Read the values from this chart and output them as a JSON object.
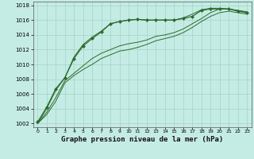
{
  "background_color": "#c5ece4",
  "grid_color": "#a0d4c8",
  "line_color": "#2d6a2d",
  "marker_color": "#2d6a2d",
  "xlabel": "Graphe pression niveau de la mer (hPa)",
  "xlabel_fontsize": 6.5,
  "ylim": [
    1001.5,
    1018.5
  ],
  "xlim": [
    -0.5,
    23.5
  ],
  "yticks": [
    1002,
    1004,
    1006,
    1008,
    1010,
    1012,
    1014,
    1016,
    1018
  ],
  "xticks": [
    0,
    1,
    2,
    3,
    4,
    5,
    6,
    7,
    8,
    9,
    10,
    11,
    12,
    13,
    14,
    15,
    16,
    17,
    18,
    19,
    20,
    21,
    22,
    23
  ],
  "line_spike": [
    1002.2,
    1004.2,
    1006.7,
    1008.2,
    1010.8,
    1012.5,
    1013.5,
    1014.4,
    1015.5,
    1015.8,
    1016.0,
    1016.1,
    1016.0,
    1016.0,
    1016.0,
    1016.0,
    1016.2,
    1016.5,
    1017.3,
    1017.5,
    1017.5,
    1017.5,
    1017.2,
    1017.0
  ],
  "line_high": [
    1002.0,
    1004.0,
    1006.5,
    1008.2,
    1011.0,
    1012.7,
    1013.7,
    1014.5,
    1015.5,
    1015.8,
    1016.0,
    1016.1,
    1016.0,
    1016.0,
    1016.0,
    1016.0,
    1016.3,
    1016.8,
    1017.4,
    1017.6,
    1017.6,
    1017.5,
    1017.3,
    1017.1
  ],
  "line_mid": [
    1002.0,
    1003.5,
    1005.5,
    1007.8,
    1008.8,
    1009.8,
    1010.8,
    1011.5,
    1012.0,
    1012.5,
    1012.8,
    1013.0,
    1013.3,
    1013.8,
    1014.0,
    1014.3,
    1014.8,
    1015.5,
    1016.2,
    1017.0,
    1017.5,
    1017.5,
    1017.3,
    1017.1
  ],
  "line_low": [
    1002.0,
    1003.2,
    1005.0,
    1007.5,
    1008.5,
    1009.3,
    1010.0,
    1010.8,
    1011.3,
    1011.8,
    1012.0,
    1012.3,
    1012.7,
    1013.2,
    1013.5,
    1013.8,
    1014.3,
    1015.0,
    1015.8,
    1016.5,
    1017.0,
    1017.2,
    1017.0,
    1016.8
  ]
}
